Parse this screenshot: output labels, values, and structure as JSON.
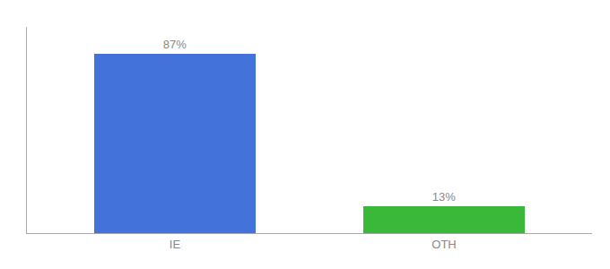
{
  "chart_data": {
    "type": "bar",
    "categories": [
      "IE",
      "OTH"
    ],
    "values": [
      87,
      13
    ],
    "value_labels": [
      "87%",
      "13%"
    ],
    "colors": [
      "#4472db",
      "#3ab83a"
    ],
    "ylim": [
      0,
      100
    ],
    "yticks": [],
    "grid": false,
    "tick_labels": "x",
    "data_labels": true
  }
}
